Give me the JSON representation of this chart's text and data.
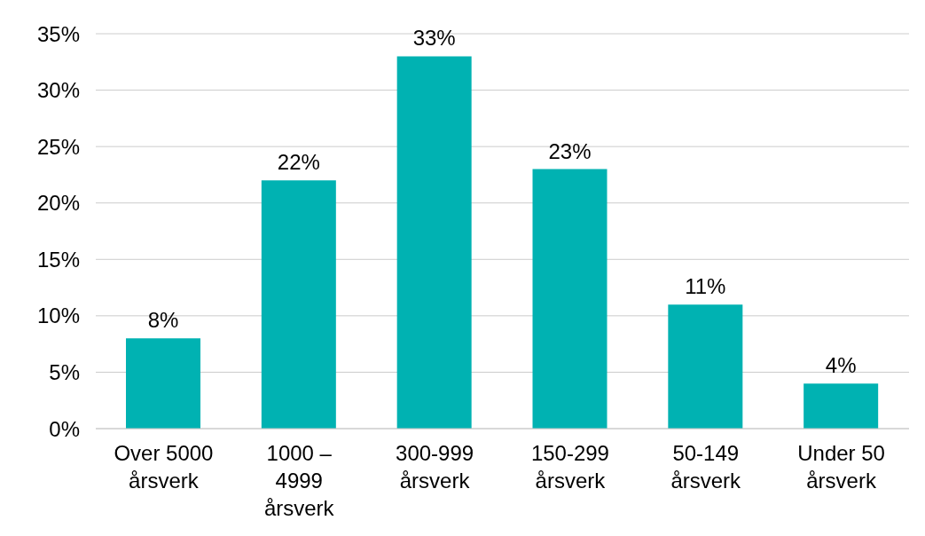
{
  "chart_data": {
    "type": "bar",
    "categories": [
      "Over 5000 årsverk",
      "1000 – 4999 årsverk",
      "300-999 årsverk",
      "150-299 årsverk",
      "50-149 årsverk",
      "Under 50 årsverk"
    ],
    "values": [
      8,
      22,
      33,
      23,
      11,
      4
    ],
    "color": "#00b2b2",
    "value_labels": [
      "8%",
      "22%",
      "33%",
      "23%",
      "11%",
      "4%"
    ],
    "ylim": [
      0,
      35
    ],
    "yticks": [
      {
        "value": 0,
        "label": "0%"
      },
      {
        "value": 5,
        "label": "5%"
      },
      {
        "value": 10,
        "label": "10%"
      },
      {
        "value": 15,
        "label": "15%"
      },
      {
        "value": 20,
        "label": "20%"
      },
      {
        "value": 25,
        "label": "25%"
      },
      {
        "value": 30,
        "label": "30%"
      },
      {
        "value": 35,
        "label": "35%"
      }
    ],
    "grid": "y",
    "legend": false
  }
}
